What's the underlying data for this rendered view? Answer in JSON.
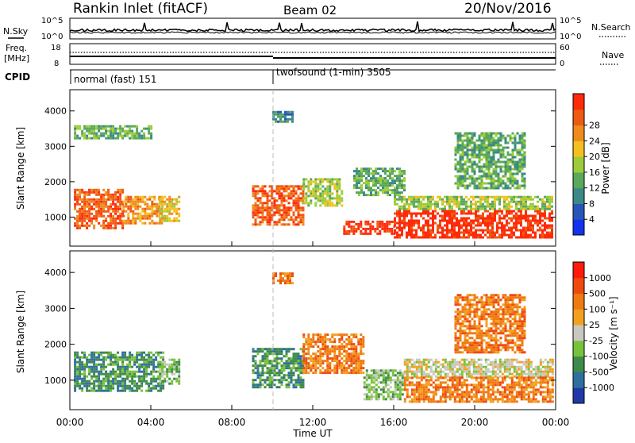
{
  "header": {
    "station": "Rankin Inlet (fitACF)",
    "beam": "Beam 02",
    "date": "20/Nov/2016"
  },
  "noise_panel": {
    "left_label": "N.Sky",
    "right_label": "N.Search",
    "left_ticks": [
      "10^5",
      "10^0"
    ],
    "right_ticks": [
      "10^5",
      "10^0"
    ]
  },
  "freq_panel": {
    "left_label_1": "Freq.",
    "left_label_2": "[MHz]",
    "right_label": "Nave",
    "left_ticks": [
      "18",
      "8"
    ],
    "right_ticks": [
      "60",
      "0"
    ]
  },
  "cpid": {
    "label": "CPID",
    "programs": [
      {
        "name": "normal (fast) 151",
        "start_hour": 0
      },
      {
        "name": "twofsound (1-min) 3505",
        "start_hour": 10
      }
    ]
  },
  "x_axis": {
    "label": "Time UT",
    "ticks": [
      "00:00",
      "04:00",
      "08:00",
      "12:00",
      "16:00",
      "20:00",
      "00:00"
    ],
    "range_hours": [
      0,
      24
    ]
  },
  "chart_data": [
    {
      "type": "heatmap",
      "title": "",
      "xlabel": "Time UT",
      "ylabel": "Slant Range [km]",
      "xlim": [
        0,
        24
      ],
      "ylim": [
        180,
        4600
      ],
      "y_ticks": [
        "1000",
        "2000",
        "3000",
        "4000"
      ],
      "y_tick_values": [
        1000,
        2000,
        3000,
        4000
      ],
      "colorbar": {
        "label": "Power [dB]",
        "ticks": [
          "4",
          "8",
          "12",
          "16",
          "20",
          "24",
          "28"
        ],
        "colors": [
          "#1133ee",
          "#2a55b8",
          "#3b8a88",
          "#5aa85a",
          "#9ccc3a",
          "#f4c020",
          "#f08a1c",
          "#ee5a14",
          "#ff2a0a"
        ]
      },
      "regions": [
        {
          "t0": 0.2,
          "t1": 2.6,
          "r0": 700,
          "r1": 1800,
          "level": 7
        },
        {
          "t0": 2.6,
          "t1": 4.6,
          "r0": 800,
          "r1": 1600,
          "level": 6
        },
        {
          "t0": 4.4,
          "t1": 5.4,
          "r0": 900,
          "r1": 1600,
          "level": 5
        },
        {
          "t0": 9.0,
          "t1": 11.5,
          "r0": 800,
          "r1": 1900,
          "level": 7
        },
        {
          "t0": 11.5,
          "t1": 13.5,
          "r0": 1300,
          "r1": 2100,
          "level": 4
        },
        {
          "t0": 13.5,
          "t1": 16.0,
          "r0": 500,
          "r1": 900,
          "level": 8
        },
        {
          "t0": 16.0,
          "t1": 23.8,
          "r0": 400,
          "r1": 1200,
          "level": 8
        },
        {
          "t0": 16.0,
          "t1": 23.8,
          "r0": 1200,
          "r1": 1600,
          "level": 4
        },
        {
          "t0": 14.0,
          "t1": 16.5,
          "r0": 1600,
          "r1": 2400,
          "level": 3
        },
        {
          "t0": 19.0,
          "t1": 22.5,
          "r0": 1800,
          "r1": 3400,
          "level": 3
        },
        {
          "t0": 0.2,
          "t1": 4.0,
          "r0": 3200,
          "r1": 3600,
          "level": 3
        },
        {
          "t0": 10.0,
          "t1": 11.0,
          "r0": 3700,
          "r1": 4000,
          "level": 2
        }
      ]
    },
    {
      "type": "heatmap",
      "title": "",
      "xlabel": "Time UT",
      "ylabel": "Slant Range [km]",
      "xlim": [
        0,
        24
      ],
      "ylim": [
        180,
        4600
      ],
      "y_ticks": [
        "1000",
        "2000",
        "3000",
        "4000"
      ],
      "y_tick_values": [
        1000,
        2000,
        3000,
        4000
      ],
      "colorbar": {
        "label": "Velocity [m s⁻¹]",
        "ticks": [
          "1000",
          "500",
          "100",
          "25",
          "-25",
          "-100",
          "-500",
          "-1000"
        ],
        "colors": [
          "#1f3aa8",
          "#2e6fa0",
          "#3f8a4a",
          "#77c23a",
          "#c8c8c0",
          "#f2a020",
          "#ef7a10",
          "#ee4a10",
          "#ff1a0a"
        ]
      },
      "regions": [
        {
          "t0": 0.2,
          "t1": 4.6,
          "r0": 700,
          "r1": 1800,
          "level": 2
        },
        {
          "t0": 4.4,
          "t1": 5.4,
          "r0": 900,
          "r1": 1600,
          "level": 3
        },
        {
          "t0": 9.0,
          "t1": 11.5,
          "r0": 800,
          "r1": 1900,
          "level": 2
        },
        {
          "t0": 11.5,
          "t1": 14.5,
          "r0": 1200,
          "r1": 2300,
          "level": 6
        },
        {
          "t0": 14.5,
          "t1": 16.5,
          "r0": 500,
          "r1": 1300,
          "level": 3
        },
        {
          "t0": 16.5,
          "t1": 23.8,
          "r0": 1100,
          "r1": 1600,
          "level": 4
        },
        {
          "t0": 16.5,
          "t1": 23.8,
          "r0": 400,
          "r1": 1100,
          "level": 6
        },
        {
          "t0": 19.0,
          "t1": 22.5,
          "r0": 1800,
          "r1": 3400,
          "level": 6
        },
        {
          "t0": 10.0,
          "t1": 11.0,
          "r0": 3700,
          "r1": 4000,
          "level": 6
        }
      ]
    }
  ]
}
